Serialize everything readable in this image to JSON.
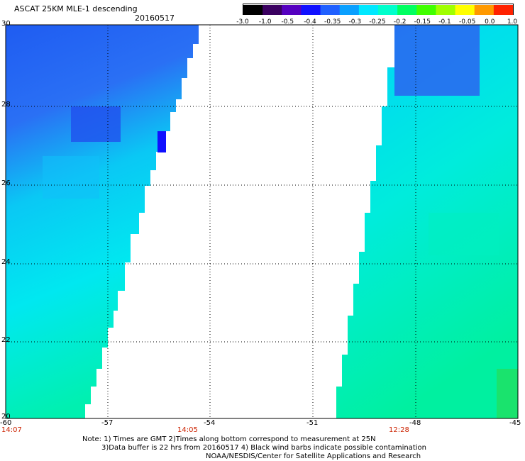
{
  "header": {
    "title": "ASCAT 25KM MLE-1 descending",
    "date": "20160517"
  },
  "legend": {
    "ticks": [
      "-3.0",
      "-1.0",
      "-0.5",
      "-0.4",
      "-0.35",
      "-0.3",
      "-0.25",
      "-0.2",
      "-0.15",
      "-0.1",
      "-0.05",
      "0.0",
      "1.0"
    ],
    "colors": [
      "#000000",
      "#3a0060",
      "#5500c0",
      "#1010ff",
      "#2060ff",
      "#0aa0ff",
      "#00e8ff",
      "#00ffcc",
      "#00ff60",
      "#40ff00",
      "#a0ff00",
      "#ffff00",
      "#ff9900",
      "#ff2200"
    ]
  },
  "axes": {
    "lon_labels": [
      "-60",
      "-57",
      "-54",
      "-51",
      "-48",
      "-45"
    ],
    "lat_labels": [
      "30",
      "28",
      "26",
      "24",
      "22",
      "20"
    ]
  },
  "times": [
    "14:07",
    "14:05",
    "12:28"
  ],
  "notes": [
    "Note: 1) Times are GMT 2)Times along bottom correspond to measurement at 25N",
    "3)Data buffer is 22 hrs from 20160517 4) Black wind barbs indicate possible contamination",
    "NOAA/NESDIS/Center for Satellite Applications and Research"
  ],
  "colors": {
    "swath_blue": "#2a66f0",
    "swath_cyan": "#00e6f0",
    "swath_green": "#00f0a8",
    "time_label": "#cc2200"
  }
}
